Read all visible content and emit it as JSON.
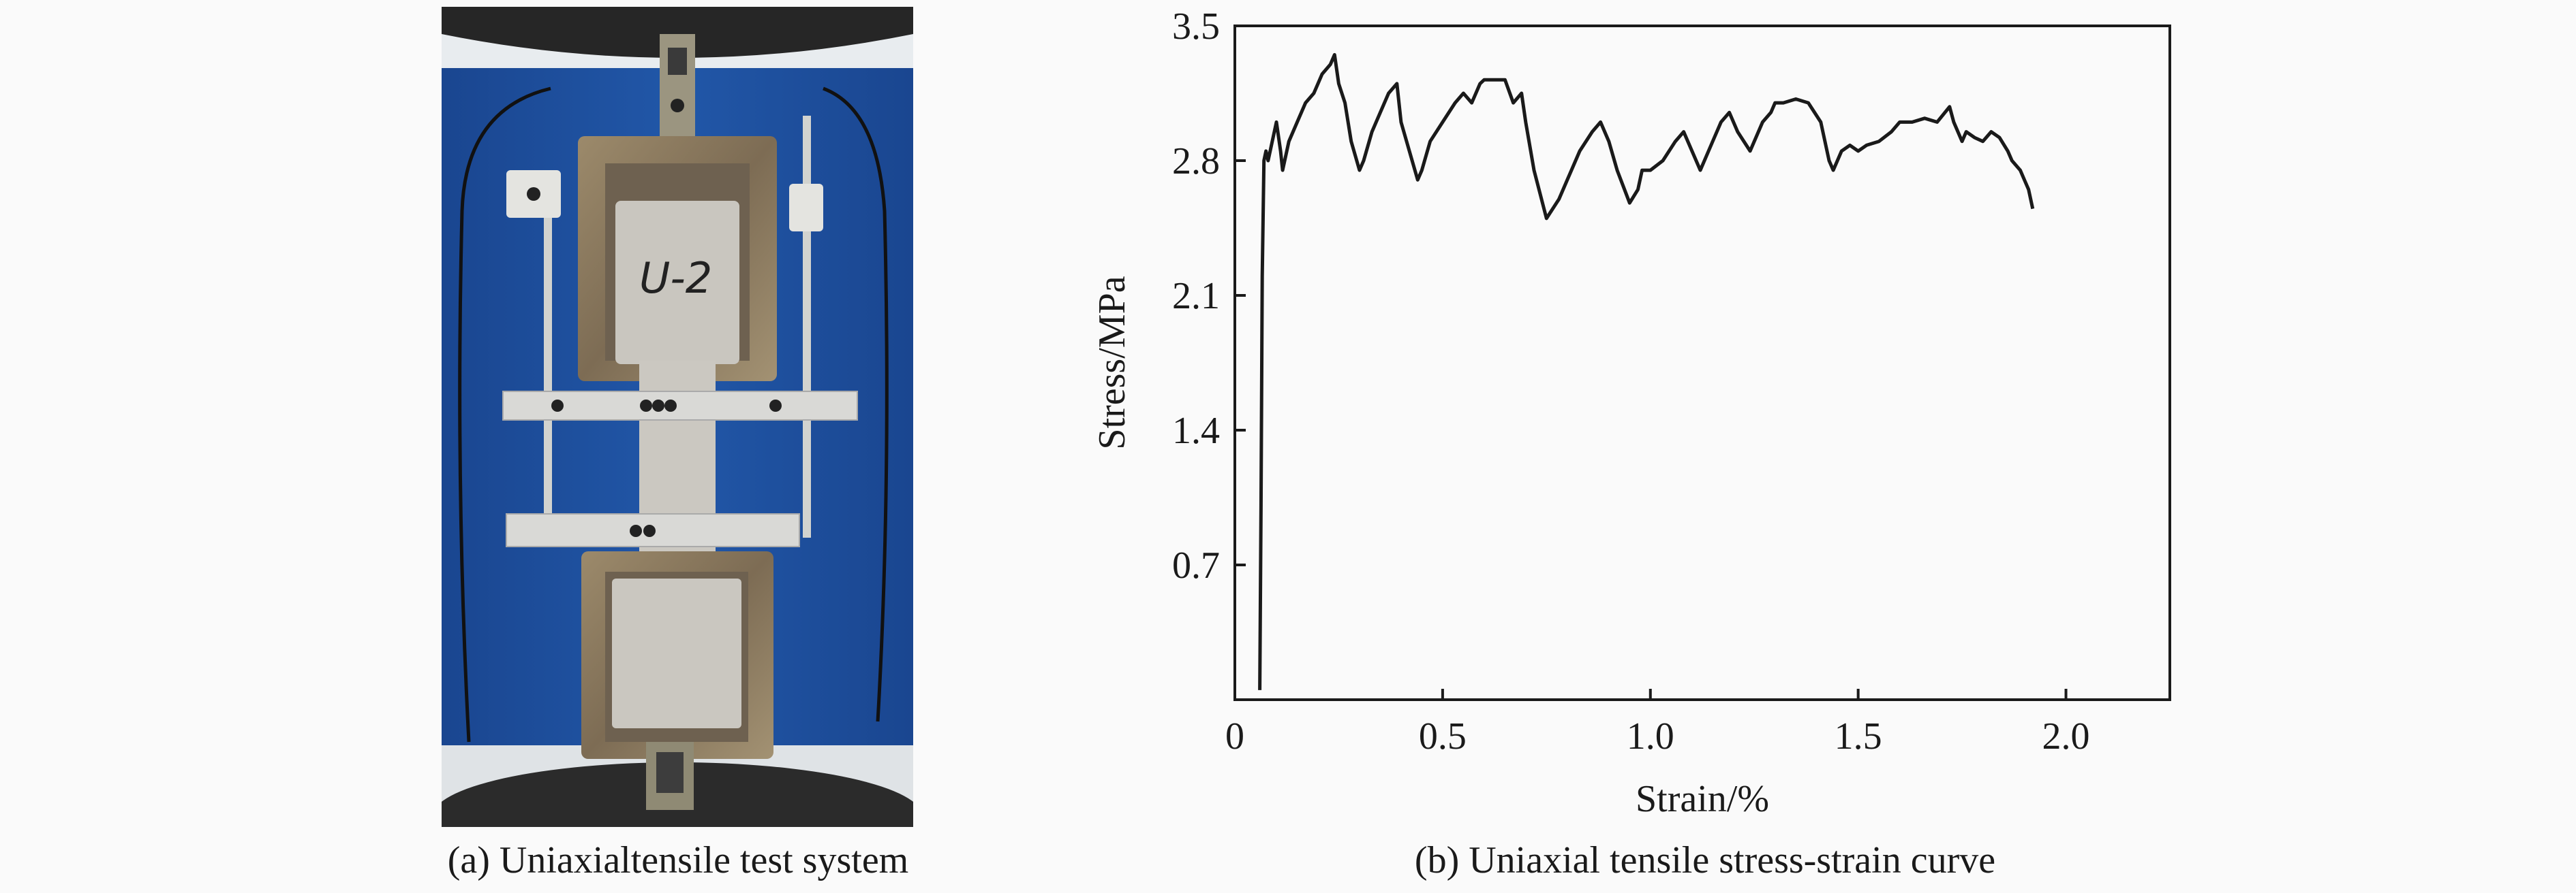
{
  "captions": {
    "a": "(a) Uniaxialtensile test system",
    "b": "(b) Uniaxial tensile stress-strain curve"
  },
  "photo": {
    "handwritten_label": "U-2",
    "colors": {
      "backdrop": "#1e4f9e",
      "specimen": "#c9c6bf",
      "clamp": "#8a7a62",
      "bar": "#d9d9d6",
      "rod": "#cfd0cc",
      "machine": "#2a2a2a"
    }
  },
  "chart_data": {
    "type": "line",
    "xlabel": "Strain/%",
    "ylabel": "Stress/MPa",
    "xlim": [
      0,
      2.25
    ],
    "ylim": [
      0,
      3.5
    ],
    "xticks": [
      0,
      0.5,
      1.0,
      1.5,
      2.0
    ],
    "xtick_labels": [
      "0",
      "0.5",
      "1.0",
      "1.5",
      "2.0"
    ],
    "yticks": [
      0.7,
      1.4,
      2.1,
      2.8,
      3.5
    ],
    "ytick_labels": [
      "0.7",
      "1.4",
      "2.1",
      "2.8",
      "3.5"
    ],
    "grid": false,
    "series": [
      {
        "color": "#1a1a1a",
        "x": [
          0.06,
          0.063,
          0.066,
          0.07,
          0.075,
          0.08,
          0.09,
          0.1,
          0.11,
          0.115,
          0.13,
          0.15,
          0.17,
          0.19,
          0.2,
          0.21,
          0.23,
          0.24,
          0.25,
          0.265,
          0.28,
          0.3,
          0.31,
          0.33,
          0.35,
          0.37,
          0.39,
          0.4,
          0.42,
          0.44,
          0.45,
          0.47,
          0.5,
          0.53,
          0.55,
          0.57,
          0.59,
          0.6,
          0.62,
          0.65,
          0.67,
          0.69,
          0.7,
          0.72,
          0.75,
          0.78,
          0.8,
          0.83,
          0.86,
          0.88,
          0.9,
          0.92,
          0.95,
          0.97,
          0.98,
          1.0,
          1.03,
          1.06,
          1.08,
          1.1,
          1.12,
          1.15,
          1.17,
          1.19,
          1.21,
          1.24,
          1.27,
          1.29,
          1.3,
          1.32,
          1.35,
          1.38,
          1.41,
          1.43,
          1.44,
          1.46,
          1.48,
          1.5,
          1.52,
          1.55,
          1.58,
          1.6,
          1.63,
          1.66,
          1.69,
          1.72,
          1.73,
          1.75,
          1.76,
          1.78,
          1.8,
          1.82,
          1.84,
          1.86,
          1.87,
          1.89,
          1.9,
          1.91,
          1.92
        ],
        "y": [
          0.05,
          1.0,
          2.2,
          2.8,
          2.85,
          2.8,
          2.9,
          3.0,
          2.85,
          2.75,
          2.9,
          3.0,
          3.1,
          3.15,
          3.2,
          3.25,
          3.3,
          3.35,
          3.2,
          3.1,
          2.9,
          2.75,
          2.8,
          2.95,
          3.05,
          3.15,
          3.2,
          3.0,
          2.85,
          2.7,
          2.75,
          2.9,
          3.0,
          3.1,
          3.15,
          3.1,
          3.2,
          3.22,
          3.22,
          3.22,
          3.1,
          3.15,
          3.0,
          2.75,
          2.5,
          2.6,
          2.7,
          2.85,
          2.95,
          3.0,
          2.9,
          2.75,
          2.58,
          2.65,
          2.75,
          2.75,
          2.8,
          2.9,
          2.95,
          2.85,
          2.75,
          2.9,
          3.0,
          3.05,
          2.95,
          2.85,
          3.0,
          3.05,
          3.1,
          3.1,
          3.12,
          3.1,
          3.0,
          2.8,
          2.75,
          2.85,
          2.88,
          2.85,
          2.88,
          2.9,
          2.95,
          3.0,
          3.0,
          3.02,
          3.0,
          3.08,
          3.0,
          2.9,
          2.95,
          2.92,
          2.9,
          2.95,
          2.92,
          2.85,
          2.8,
          2.75,
          2.7,
          2.65,
          2.55
        ]
      }
    ]
  }
}
